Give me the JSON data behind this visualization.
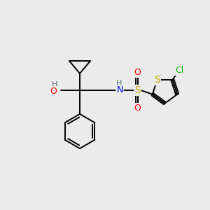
{
  "bg_color": "#ebebeb",
  "bond_color": "#000000",
  "colors": {
    "S": "#ccaa00",
    "O": "#ff0000",
    "N": "#0000ee",
    "Cl": "#00bb00",
    "H": "#507070",
    "C": "#000000"
  }
}
